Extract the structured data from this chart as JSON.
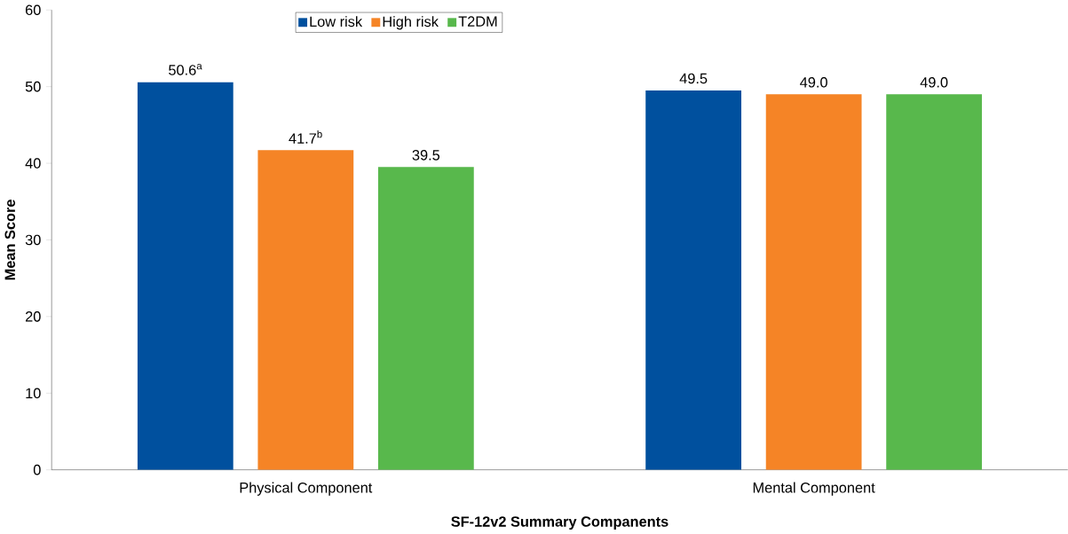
{
  "chart_data": {
    "type": "bar",
    "xlabel": "SF-12v2 Summary Companents",
    "ylabel": "Mean Score",
    "categories": [
      "Physical Component",
      "Mental Component"
    ],
    "series": [
      {
        "name": "Low risk",
        "color": "#00509e",
        "values": [
          50.6,
          49.5
        ],
        "value_labels": [
          "50.6$^{a}$",
          "49.5"
        ]
      },
      {
        "name": "High risk",
        "color": "#f58426",
        "values": [
          41.7,
          49.0
        ],
        "value_labels": [
          "41.7$^{b}$",
          "49.0"
        ]
      },
      {
        "name": "T2DM",
        "color": "#58b84c",
        "values": [
          39.5,
          49.0
        ],
        "value_labels": [
          "39.5",
          "49.0"
        ]
      }
    ],
    "ylim": [
      0,
      60
    ],
    "yticks": [
      0,
      10,
      20,
      30,
      40,
      50,
      60
    ],
    "grid": false,
    "legend": "top"
  }
}
